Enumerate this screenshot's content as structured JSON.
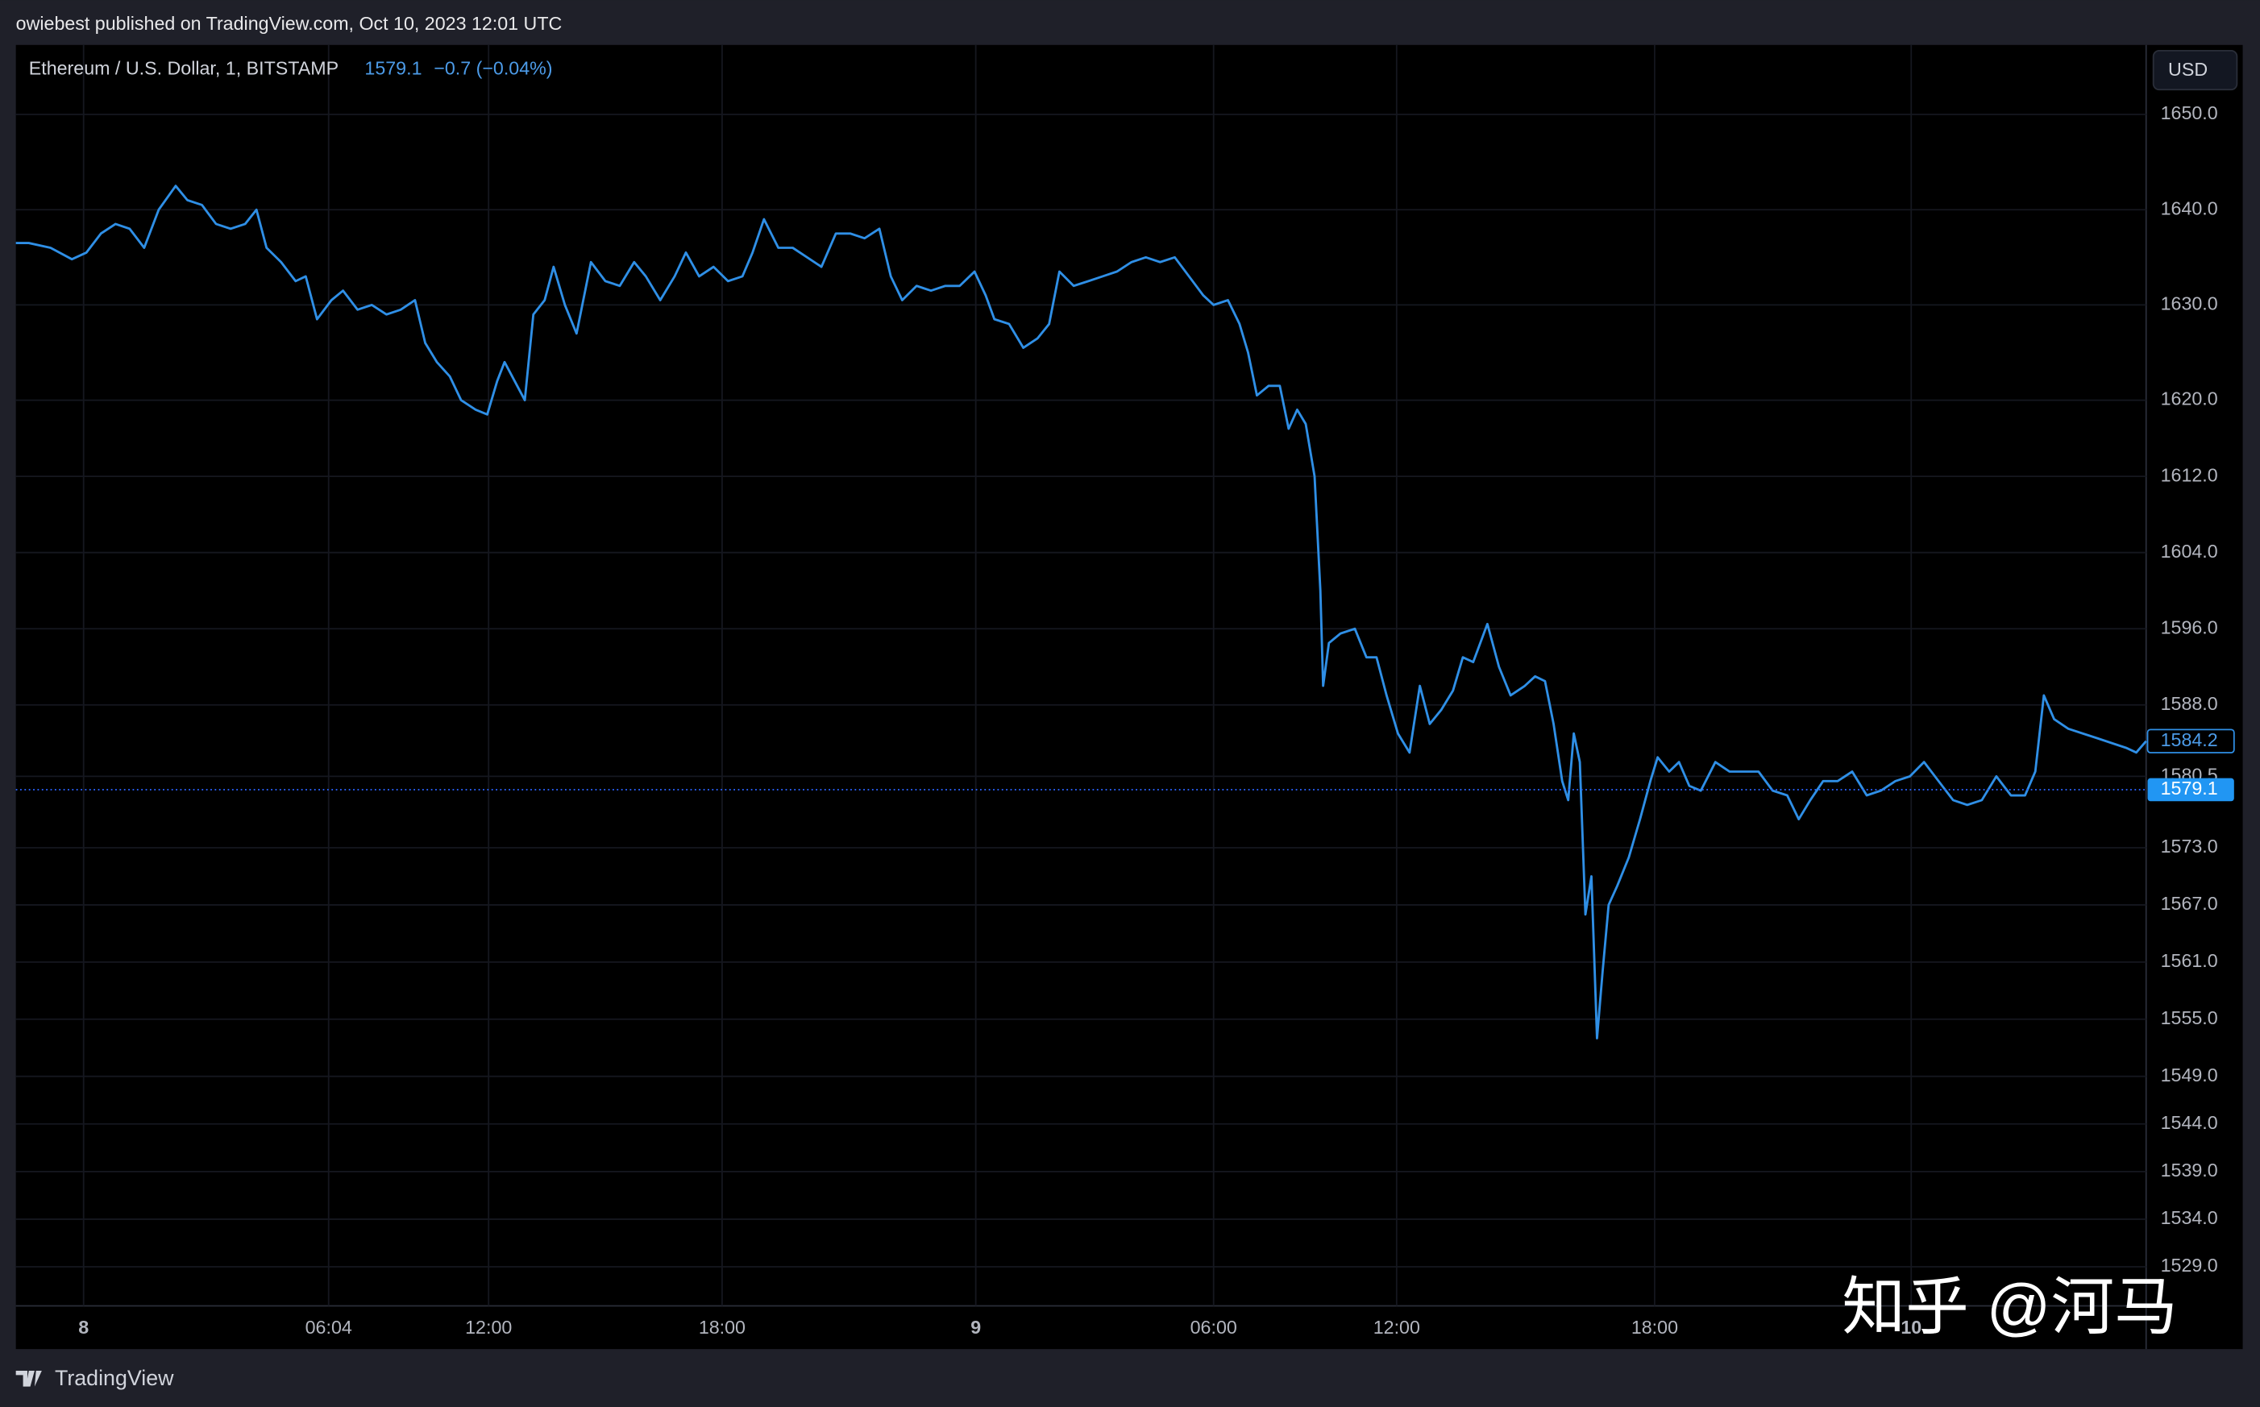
{
  "chart_data": {
    "type": "line",
    "publisher": "owiebest published on TradingView.com, Oct 10, 2023 12:01 UTC",
    "symbol_info": "Ethereum / U.S. Dollar, 1, BITSTAMP",
    "last_price": 1579.1,
    "change": "−0.7 (−0.04%)",
    "line_price": 1584.2,
    "currency": "USD",
    "brand": "TradingView",
    "watermark": "知乎 @河马",
    "color": "#2f8fe6",
    "grid": true,
    "xlim": [
      -1.68,
      53.49
    ],
    "ylim": [
      1524.9,
      1657.3
    ],
    "xticks": [
      {
        "value": 0,
        "label": "8"
      },
      {
        "value": 6.067,
        "label": "06:04"
      },
      {
        "value": 12,
        "label": "12:00"
      },
      {
        "value": 18,
        "label": "18:00"
      },
      {
        "value": 24,
        "label": "9"
      },
      {
        "value": 30,
        "label": "06:00"
      },
      {
        "value": 36,
        "label": "12:00"
      },
      {
        "value": 42,
        "label": "18:00"
      },
      {
        "value": 48,
        "label": "10"
      }
    ],
    "yticks": [
      {
        "value": 1650,
        "label": "1650.0"
      },
      {
        "value": 1640,
        "label": "1640.0"
      },
      {
        "value": 1630,
        "label": "1630.0"
      },
      {
        "value": 1620,
        "label": "1620.0"
      },
      {
        "value": 1612,
        "label": "1612.0"
      },
      {
        "value": 1604,
        "label": "1604.0"
      },
      {
        "value": 1596,
        "label": "1596.0"
      },
      {
        "value": 1588,
        "label": "1588.0"
      },
      1580.5,
      {
        "value": 1573,
        "label": "1573.0"
      },
      {
        "value": 1567,
        "label": "1567.0"
      },
      {
        "value": 1561,
        "label": "1561.0"
      },
      {
        "value": 1555,
        "label": "1555.0"
      },
      {
        "value": 1549,
        "label": "1549.0"
      },
      {
        "value": 1544,
        "label": "1544.0"
      },
      {
        "value": 1539,
        "label": "1539.0"
      },
      {
        "value": 1534,
        "label": "1534.0"
      },
      {
        "value": 1529,
        "label": "1529.0"
      }
    ],
    "x": [
      -1.68,
      -1.36,
      -0.82,
      -0.29,
      0.07,
      0.43,
      0.79,
      1.14,
      1.5,
      1.86,
      2.28,
      2.57,
      2.93,
      3.28,
      3.64,
      4.0,
      4.28,
      4.53,
      4.89,
      5.25,
      5.5,
      5.78,
      6.17,
      6.6,
      7.14,
      7.67,
      8.21,
      8.74,
      9.27,
      9.65,
      10.08,
      10.56,
      10.98,
      11.52,
      11.95,
      12.22,
      12.41,
      12.67,
      12.93,
      13.15,
      13.44,
      13.67,
      13.96,
      14.26,
      14.63,
      15.0,
      15.37,
      15.74,
      16.04,
      16.41,
      16.78,
      17.07,
      17.41,
      17.78,
      18.14,
      18.48,
      18.72,
      18.99,
      19.33,
      19.67,
      20.01,
      20.35,
      20.69,
      21.03,
      21.37,
      21.72,
      21.99,
      22.26,
      22.6,
      22.94,
      23.28,
      23.62,
      23.97,
      24.25,
      24.47,
      24.84,
      25.2,
      25.56,
      25.85,
      26.11,
      26.47,
      26.84,
      27.2,
      27.56,
      27.93,
      28.29,
      28.65,
      29.02,
      29.38,
      29.74,
      30.0,
      30.47,
      30.85,
      31.13,
      31.42,
      31.8,
      32.17,
      32.46,
      32.74,
      33.02,
      33.31,
      33.5,
      33.59,
      33.78,
      34.16,
      34.63,
      35.01,
      35.34,
      35.67,
      36.03,
      36.3,
      36.54,
      36.77,
      37.04,
      37.31,
      37.54,
      37.78,
      38.11,
      38.38,
      38.65,
      38.98,
      39.22,
      39.45,
      39.65,
      39.85,
      39.99,
      40.12,
      40.26,
      40.39,
      40.53,
      40.66,
      40.79,
      40.93,
      41.13,
      41.4,
      41.66,
      41.9,
      42.07,
      42.34,
      42.57,
      42.81,
      43.08,
      43.42,
      43.75,
      44.09,
      44.43,
      44.76,
      45.1,
      45.37,
      45.64,
      45.94,
      46.28,
      46.62,
      46.96,
      47.29,
      47.63,
      47.97,
      48.3,
      48.64,
      48.98,
      49.31,
      49.65,
      49.99,
      50.33,
      50.66,
      50.9,
      51.1,
      51.34,
      51.67,
      52.01,
      52.35,
      52.68,
      53.02,
      53.26,
      53.49
    ],
    "values": [
      1636.5,
      1636.5,
      1636,
      1634.8,
      1635.5,
      1637.5,
      1638.5,
      1638,
      1636,
      1640,
      1642.5,
      1641,
      1640.5,
      1638.5,
      1638,
      1638.5,
      1640,
      1636,
      1634.5,
      1632.5,
      1633,
      1628.5,
      1630.5,
      1631.5,
      1629.5,
      1630,
      1629,
      1629.5,
      1630.5,
      1626,
      1624,
      1622.5,
      1620,
      1619,
      1618.5,
      1622,
      1624,
      1622,
      1620,
      1629,
      1630.5,
      1634,
      1630,
      1627,
      1634.5,
      1632.5,
      1632,
      1634.5,
      1633,
      1630.5,
      1633,
      1635.5,
      1633,
      1634,
      1632.5,
      1633,
      1635.5,
      1639,
      1636,
      1636,
      1635,
      1634,
      1637.5,
      1637.5,
      1637,
      1638,
      1633,
      1630.5,
      1632,
      1631.5,
      1632,
      1632,
      1633.5,
      1631,
      1628.5,
      1628,
      1625.5,
      1626.5,
      1628,
      1633.5,
      1632,
      1632.5,
      1633,
      1633.5,
      1634.5,
      1635,
      1634.5,
      1635,
      1633,
      1631,
      1630,
      1630.5,
      1628,
      1625,
      1620.5,
      1621.5,
      1621.5,
      1617,
      1619,
      1617.5,
      1612,
      1600,
      1590,
      1594.5,
      1595.5,
      1596,
      1593,
      1593,
      1589,
      1585,
      1583,
      1590,
      1586,
      1587.5,
      1589.5,
      1593,
      1592.5,
      1596.5,
      1592,
      1589,
      1590,
      1591,
      1590.5,
      1586,
      1580,
      1578,
      1585,
      1582,
      1566,
      1570,
      1553,
      1560,
      1567,
      1569,
      1572,
      1576,
      1580,
      1582.5,
      1581,
      1582,
      1579.5,
      1579,
      1582,
      1581,
      1581,
      1581,
      1579,
      1578.5,
      1576,
      1578,
      1580,
      1580,
      1581,
      1578.5,
      1579,
      1580,
      1580.5,
      1582,
      1580,
      1578,
      1577.5,
      1578,
      1580.5,
      1578.5,
      1578.5,
      1581,
      1589,
      1586.5,
      1585.5,
      1585,
      1584.5,
      1584,
      1583.5,
      1583,
      1584.2
    ]
  }
}
